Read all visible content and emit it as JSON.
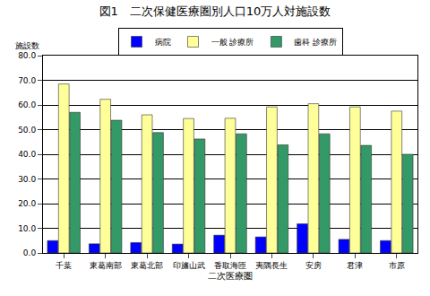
{
  "chart_data": {
    "type": "bar",
    "title": "図1　二次保健医療圏別人口10万人対施設数",
    "x_label": "二次医療圏",
    "y_label": "施設数",
    "categories": [
      "千葉",
      "東葛南部",
      "東葛北部",
      "印旛山武",
      "香取海匝",
      "夷隅長生",
      "安房",
      "君津",
      "市原"
    ],
    "series": [
      {
        "name": "病院",
        "color": "#0000ff",
        "values": [
          5.0,
          3.7,
          4.2,
          3.6,
          7.2,
          6.5,
          11.8,
          5.5,
          5.0
        ]
      },
      {
        "name": "一般 診療所",
        "color": "#ffff99",
        "values": [
          68.5,
          62.3,
          56.0,
          54.5,
          54.6,
          59.2,
          60.5,
          59.2,
          57.5
        ]
      },
      {
        "name": "歯科 診療所",
        "color": "#339966",
        "values": [
          57.0,
          53.8,
          48.8,
          46.2,
          48.3,
          43.8,
          48.3,
          43.6,
          40.0
        ]
      }
    ],
    "ylim": [
      0,
      80
    ],
    "yticks": [
      {
        "value": 0,
        "label": "0.0"
      },
      {
        "value": 10,
        "label": "10.0"
      },
      {
        "value": 20,
        "label": "20.0"
      },
      {
        "value": 30,
        "label": "30.0"
      },
      {
        "value": 40,
        "label": "40.0"
      },
      {
        "value": 50,
        "label": "50.0"
      },
      {
        "value": 60,
        "label": "60.0"
      },
      {
        "value": 70,
        "label": "70.0"
      },
      {
        "value": 80,
        "label": "80.0"
      }
    ],
    "grid": true,
    "legend": "top"
  }
}
